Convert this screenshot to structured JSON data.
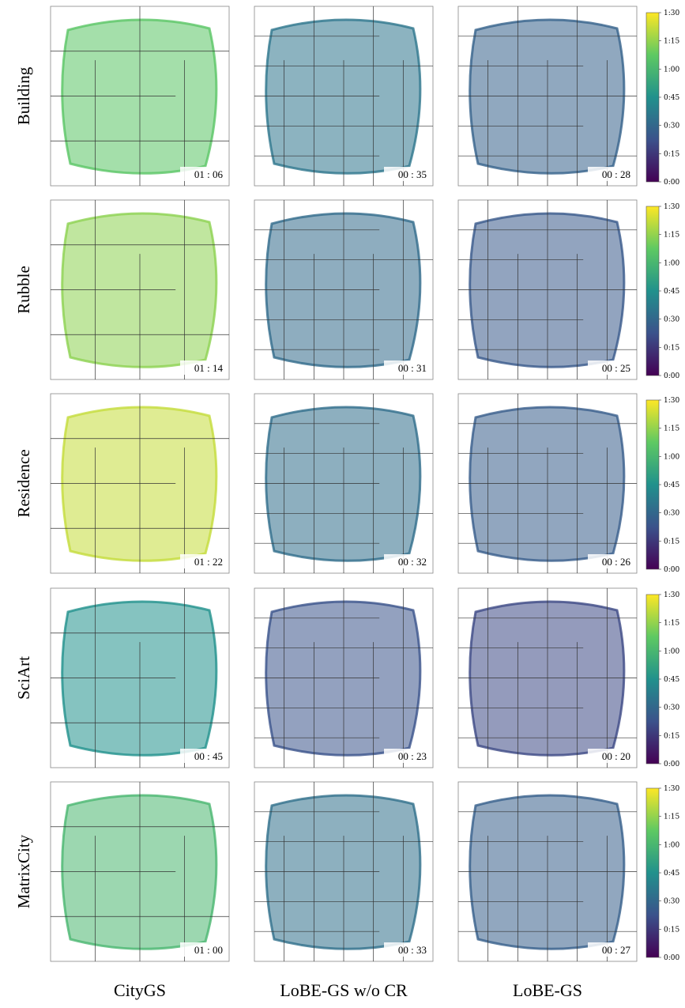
{
  "rows": [
    {
      "label": "Building",
      "times": [
        "01 : 06",
        "00 : 35",
        "00 : 28"
      ]
    },
    {
      "label": "Rubble",
      "times": [
        "01 : 14",
        "00 : 31",
        "00 : 25"
      ]
    },
    {
      "label": "Residence",
      "times": [
        "01 : 22",
        "00 : 32",
        "00 : 26"
      ]
    },
    {
      "label": "SciArt",
      "times": [
        "00 : 45",
        "00 : 23",
        "00 : 20"
      ]
    },
    {
      "label": "MatrixCity",
      "times": [
        "01 : 00",
        "00 : 33",
        "00 : 27"
      ]
    }
  ],
  "columns": [
    "CityGS",
    "LoBE-GS w/o CR",
    "LoBE-GS"
  ],
  "colorbar_ticks": [
    "0:00",
    "0:15",
    "0:30",
    "0:45",
    "1:00",
    "1:15",
    "1:30"
  ]
}
